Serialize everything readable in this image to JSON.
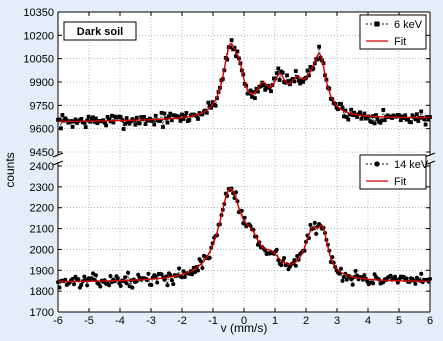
{
  "chart_data": {
    "type": "scatter",
    "background_color": "#e4eef8",
    "plot_color": "#ffffff",
    "sample_label": "Dark soil",
    "xlabel": "v (mm/s)",
    "ylabel": "counts",
    "xlim": [
      -6,
      6
    ],
    "x_ticks": [
      -6,
      -5,
      -4,
      -3,
      -2,
      -1,
      0,
      1,
      2,
      3,
      4,
      5,
      6
    ],
    "grid": "dotted",
    "panels": [
      {
        "position": "top",
        "ylim": [
          9450,
          10350
        ],
        "y_ticks": [
          9450,
          9600,
          9750,
          9900,
          10050,
          10200,
          10350
        ],
        "legend": {
          "placement": "top-right",
          "data_label": "6 keV",
          "fit_label": "Fit"
        },
        "data_style": {
          "marker": "square",
          "line": "dotted"
        },
        "baseline": 9655,
        "slope": 2,
        "noise": 38,
        "seed": 7,
        "peaks": [
          {
            "center": -0.45,
            "width": 0.28,
            "amplitude": 420
          },
          {
            "center": -0.15,
            "width": 0.2,
            "amplitude": 160
          },
          {
            "center": 0.6,
            "width": 0.25,
            "amplitude": 150
          },
          {
            "center": 1.15,
            "width": 0.25,
            "amplitude": 200
          },
          {
            "center": 1.7,
            "width": 0.28,
            "amplitude": 160
          },
          {
            "center": 2.45,
            "width": 0.25,
            "amplitude": 330
          },
          {
            "center": 2.15,
            "width": 0.3,
            "amplitude": 110
          }
        ]
      },
      {
        "position": "bottom",
        "ylim": [
          1700,
          2400
        ],
        "y_ticks": [
          1700,
          1800,
          1900,
          2000,
          2100,
          2200,
          2300,
          2400
        ],
        "legend": {
          "placement": "top-right",
          "data_label": "14 keV",
          "fit_label": "Fit"
        },
        "data_style": {
          "marker": "circle",
          "line": "dotted"
        },
        "baseline": 1842,
        "slope": 0,
        "noise": 26,
        "seed": 13,
        "peaks": [
          {
            "center": -0.45,
            "width": 0.45,
            "amplitude": 420
          },
          {
            "center": 0.25,
            "width": 0.35,
            "amplitude": 110
          },
          {
            "center": 0.9,
            "width": 0.35,
            "amplitude": 70
          },
          {
            "center": 2.2,
            "width": 0.32,
            "amplitude": 200
          },
          {
            "center": 2.55,
            "width": 0.2,
            "amplitude": 160
          }
        ]
      }
    ],
    "series_colors": {
      "data": "#000000",
      "fit": "#d40000"
    }
  }
}
